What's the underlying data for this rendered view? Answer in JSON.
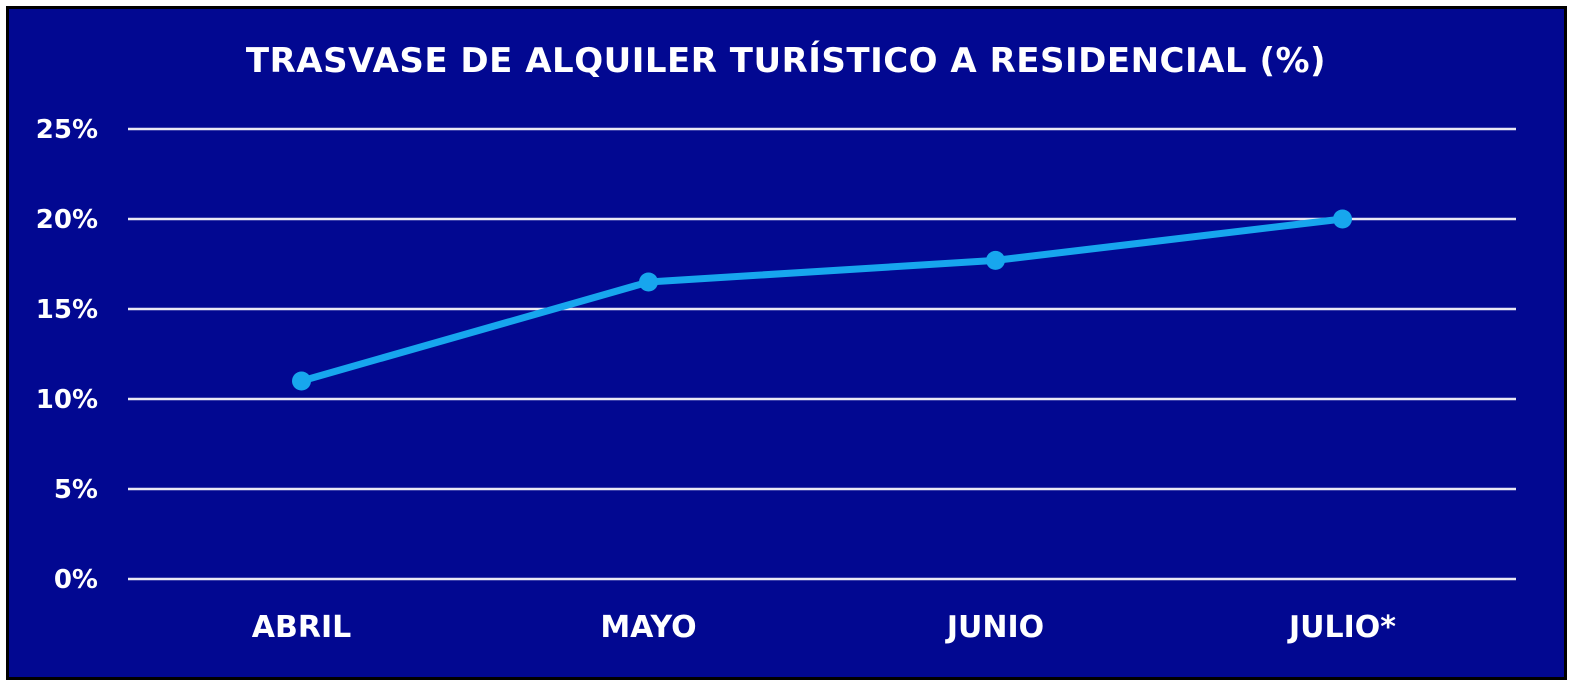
{
  "chart_data": {
    "type": "line",
    "title": "TRASVASE DE ALQUILER TURÍSTICO A RESIDENCIAL (%)",
    "xlabel": "",
    "ylabel": "",
    "categories": [
      "ABRIL",
      "MAYO",
      "JUNIO",
      "JULIO*"
    ],
    "series": [
      {
        "values": [
          11.0,
          16.5,
          17.7,
          20.0
        ]
      }
    ],
    "ylim": [
      0,
      25
    ],
    "yticks": [
      0,
      5,
      10,
      15,
      20,
      25
    ],
    "ytick_labels": [
      "0%",
      "5%",
      "10%",
      "15%",
      "20%",
      "25%"
    ],
    "grid": true,
    "legend": "none",
    "colors": {
      "background": "#020891",
      "border": "#000000",
      "line": "#17a6ee",
      "gridline": "#e8e8f4",
      "text": "#ffffff"
    }
  }
}
